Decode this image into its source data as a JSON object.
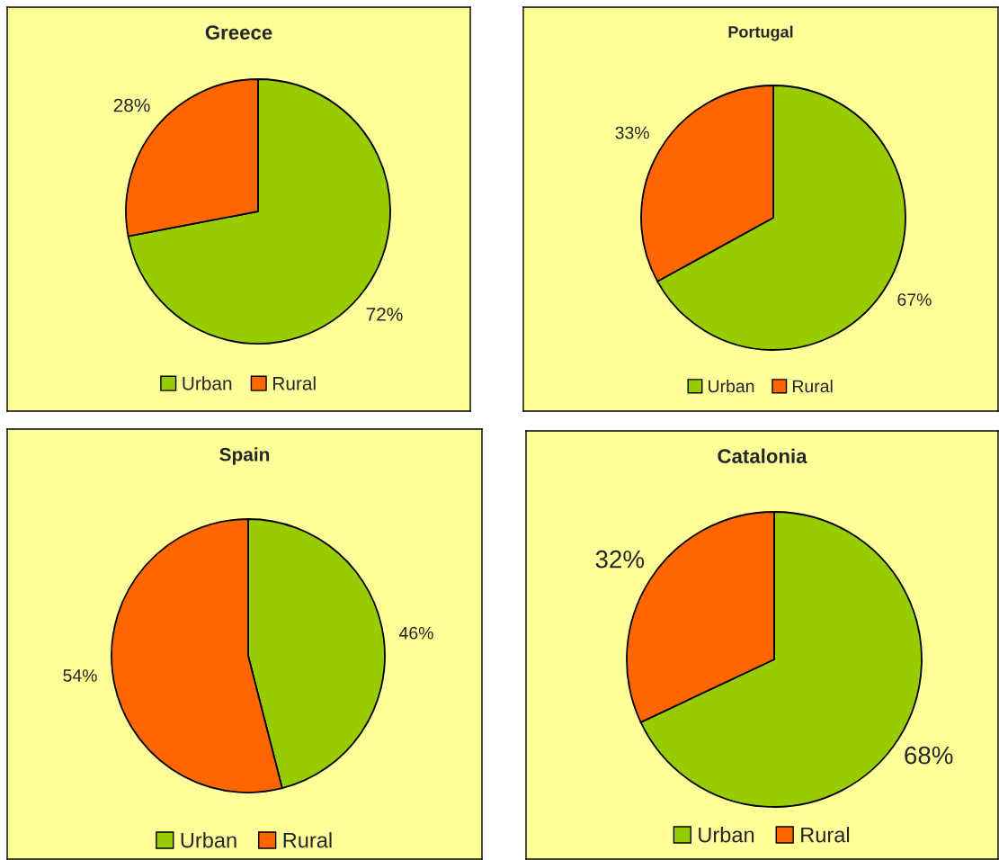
{
  "chart_data": [
    {
      "type": "pie",
      "title": "Greece",
      "categories": [
        "Urban",
        "Rural"
      ],
      "values": [
        72,
        28
      ],
      "colors": [
        "#99cc00",
        "#ff6600"
      ],
      "value_labels": [
        "72%",
        "28%"
      ],
      "legend": "bottom"
    },
    {
      "type": "pie",
      "title": "Portugal",
      "categories": [
        "Urban",
        "Rural"
      ],
      "values": [
        67,
        33
      ],
      "colors": [
        "#99cc00",
        "#ff6600"
      ],
      "value_labels": [
        "67%",
        "33%"
      ],
      "legend": "bottom"
    },
    {
      "type": "pie",
      "title": "Spain",
      "categories": [
        "Urban",
        "Rural"
      ],
      "values": [
        46,
        54
      ],
      "colors": [
        "#99cc00",
        "#ff6600"
      ],
      "value_labels": [
        "46%",
        "54%"
      ],
      "legend": "bottom"
    },
    {
      "type": "pie",
      "title": "Catalonia",
      "categories": [
        "Urban",
        "Rural"
      ],
      "values": [
        68,
        32
      ],
      "colors": [
        "#99cc00",
        "#ff6600"
      ],
      "value_labels": [
        "68%",
        "32%"
      ],
      "legend": "bottom"
    }
  ]
}
